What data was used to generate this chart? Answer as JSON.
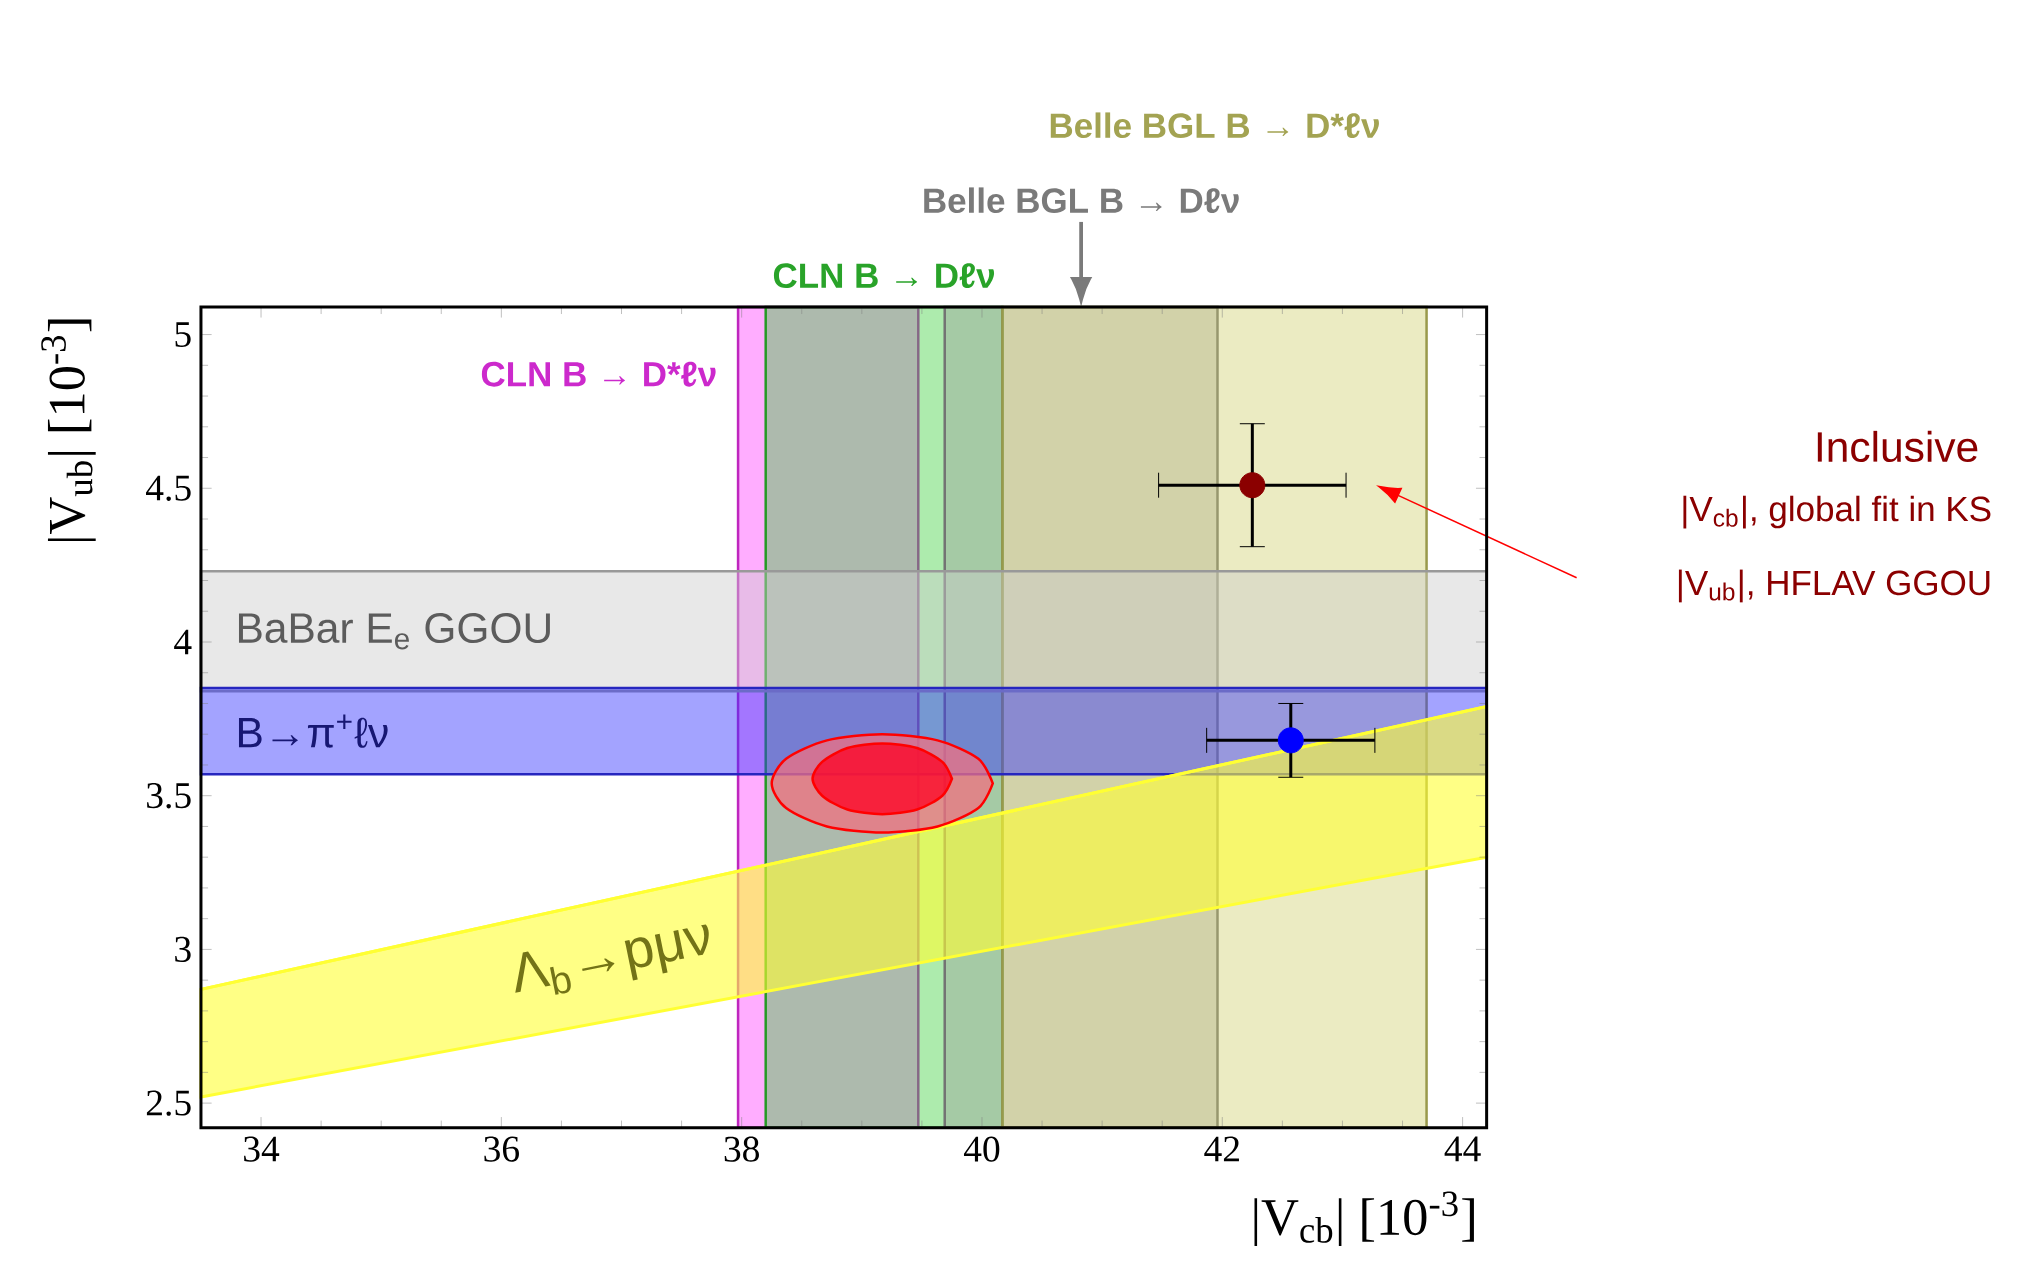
{
  "chart_data": {
    "type": "scatter",
    "xlabel": "|V$_{cb}$| [10$^{-3}$]",
    "ylabel": "|V$_{ub}$| [10$^{-3}$]",
    "xlim": [
      33.5,
      44.2
    ],
    "ylim": [
      2.42,
      5.09
    ],
    "xticks": [
      34,
      36,
      38,
      40,
      42,
      44
    ],
    "yticks": [
      2.5,
      3,
      3.5,
      4,
      4.5,
      5
    ],
    "bands": [
      {
        "axis": "x",
        "from": 37.97,
        "to": 39.47,
        "label": "CLN B → D*ℓν",
        "color": "#ff33ff"
      },
      {
        "axis": "x",
        "from": 38.2,
        "to": 40.17,
        "label": "CLN B → Dℓν",
        "color": "#33cc33"
      },
      {
        "axis": "x",
        "from": 39.69,
        "to": 41.96,
        "label": "Belle BGL B → Dℓν",
        "color": "#999999"
      },
      {
        "axis": "x",
        "from": 40.17,
        "to": 43.7,
        "label": "Belle BGL B → D*ℓν",
        "color": "#cccc66"
      },
      {
        "axis": "y",
        "from": 3.84,
        "to": 4.23,
        "label": "BaBar E$_{e}$ GGOU",
        "color": "#cccccc"
      },
      {
        "axis": "y",
        "from": 3.57,
        "to": 3.85,
        "label": "B→π$^{+}$ℓν",
        "color": "#3333ff"
      }
    ],
    "series": [
      {
        "type": "line",
        "marker": "none",
        "name": "Λ$_{b}$→pμν",
        "color": "#ffff33",
        "x": [
          33.5,
          44.2
        ],
        "values": [
          2.87,
          3.79
        ],
        "lower": [
          2.52,
          3.3
        ],
        "upper": [
          2.87,
          3.79
        ]
      },
      {
        "type": "area",
        "marker": "none",
        "color": "#f07080",
        "x": [
          40.09,
          39.97,
          39.63,
          39.17,
          38.71,
          38.37,
          38.25,
          38.37,
          38.71,
          39.17,
          39.63,
          39.97,
          40.09
        ],
        "values": [
          3.54,
          3.62,
          3.68,
          3.7,
          3.68,
          3.62,
          3.54,
          3.46,
          3.4,
          3.38,
          3.4,
          3.46,
          3.54
        ]
      },
      {
        "type": "area",
        "marker": "none",
        "color": "#ff0022",
        "x": [
          39.75,
          39.67,
          39.46,
          39.17,
          38.88,
          38.67,
          38.59,
          38.67,
          38.88,
          39.17,
          39.46,
          39.67,
          39.75
        ],
        "values": [
          3.555,
          3.61,
          3.655,
          3.67,
          3.655,
          3.61,
          3.555,
          3.5,
          3.455,
          3.44,
          3.455,
          3.5,
          3.555
        ]
      },
      {
        "type": "scatter",
        "marker": "circle",
        "name": "Inclusive",
        "color": "#8b0000",
        "x": [
          42.25
        ],
        "values": [
          4.51
        ],
        "errors": [
          0.2
        ],
        "xerrors": [
          0.78
        ]
      },
      {
        "type": "scatter",
        "marker": "circle",
        "color": "#0000ff",
        "x": [
          42.57
        ],
        "values": [
          3.68
        ],
        "errors": [
          0.12
        ],
        "xerrors": [
          0.7
        ]
      }
    ],
    "annotations": [
      "|V$_{cb}$|, global fit in KS",
      "|V$_{ub}$|, HFLAV GGOU"
    ]
  }
}
